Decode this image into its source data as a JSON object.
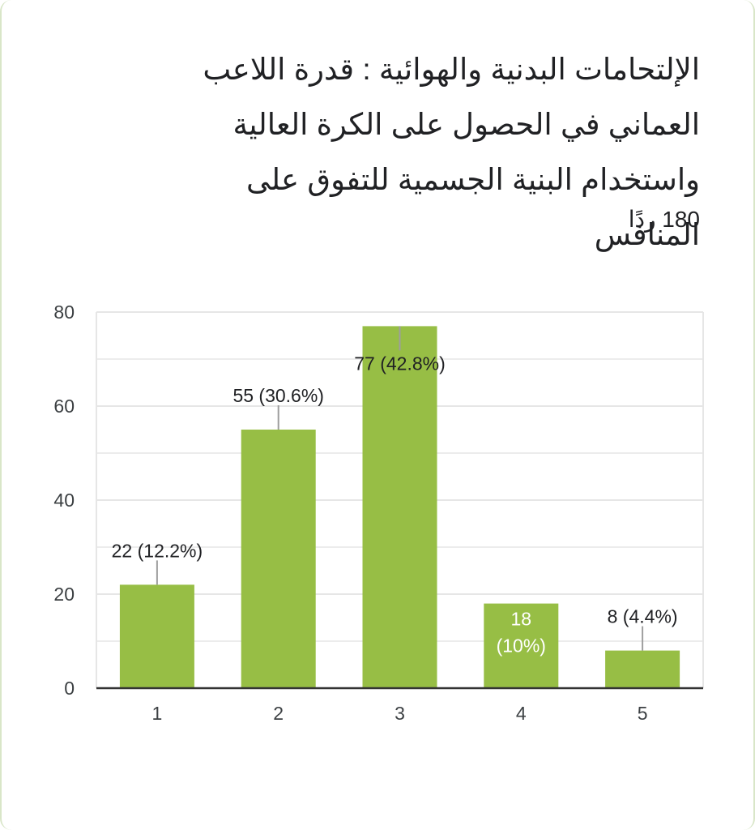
{
  "title": "الإلتحامات البدنية والهوائية : قدرة اللاعب\nالعماني في الحصول على الكرة العالية\nواستخدام البنية الجسمية للتفوق على المنافس",
  "responses": "180 ردًا",
  "colors": {
    "bar": "#97be45",
    "grid": "#e6e6e6",
    "axis": "#333333",
    "leader": "#9e9e9e"
  },
  "chart_data": {
    "type": "bar",
    "categories": [
      "1",
      "2",
      "3",
      "4",
      "5"
    ],
    "values": [
      22,
      55,
      77,
      18,
      8
    ],
    "data_labels": [
      "22 (12.2%)",
      "55 (30.6%)",
      "77 (42.8%)",
      "18 (10%)",
      "8 (4.4%)"
    ],
    "ylim": [
      0,
      80
    ],
    "y_ticks": [
      "0",
      "20",
      "40",
      "60",
      "80"
    ],
    "grid": true,
    "xlabel": "",
    "ylabel": ""
  }
}
